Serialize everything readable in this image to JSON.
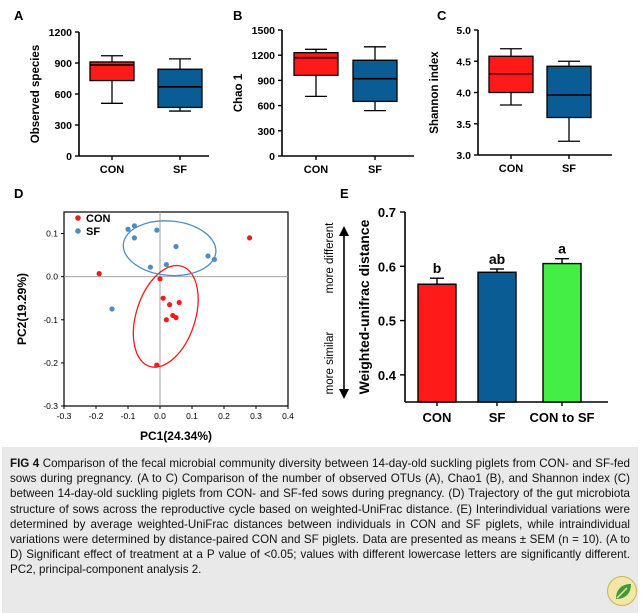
{
  "chart_data": [
    {
      "panel": "A",
      "type": "box",
      "ylabel": "Observed species",
      "ylim": [
        0,
        1200
      ],
      "yticks": [
        0,
        300,
        600,
        900,
        1200
      ],
      "categories": [
        "CON",
        "SF"
      ],
      "boxes": [
        {
          "min": 510,
          "q1": 730,
          "median": 880,
          "q3": 910,
          "max": 970,
          "color": "#ff1a1a"
        },
        {
          "min": 435,
          "q1": 470,
          "median": 670,
          "q3": 840,
          "max": 940,
          "color": "#0a5d94"
        }
      ]
    },
    {
      "panel": "B",
      "type": "box",
      "ylabel": "Chao 1",
      "ylim": [
        0,
        1500
      ],
      "yticks": [
        0,
        300,
        600,
        900,
        1200,
        1500
      ],
      "categories": [
        "CON",
        "SF"
      ],
      "boxes": [
        {
          "min": 710,
          "q1": 960,
          "median": 1170,
          "q3": 1230,
          "max": 1270,
          "color": "#ff1a1a"
        },
        {
          "min": 540,
          "q1": 650,
          "median": 920,
          "q3": 1140,
          "max": 1300,
          "color": "#0a5d94"
        }
      ]
    },
    {
      "panel": "C",
      "type": "box",
      "ylabel": "Shannon index",
      "ylim": [
        3.0,
        5.0
      ],
      "yticks": [
        "3.0",
        "3.5",
        "4.0",
        "4.5",
        "5.0"
      ],
      "categories": [
        "CON",
        "SF"
      ],
      "boxes": [
        {
          "min": 3.8,
          "q1": 4.0,
          "median": 4.3,
          "q3": 4.58,
          "max": 4.7,
          "color": "#ff1a1a"
        },
        {
          "min": 3.22,
          "q1": 3.6,
          "median": 3.96,
          "q3": 4.42,
          "max": 4.5,
          "color": "#0a5d94"
        }
      ]
    },
    {
      "panel": "D",
      "type": "scatter",
      "xlabel": "PC1(24.34%)",
      "ylabel": "PC2(19.29%)",
      "xlim": [
        -0.3,
        0.4
      ],
      "ylim": [
        -0.3,
        0.15
      ],
      "xticks": [
        "-0.3",
        "-0.2",
        "-0.1",
        "0.0",
        "0.1",
        "0.2",
        "0.3",
        "0.4"
      ],
      "yticks": [
        "0.1",
        "0.0",
        "-0.1",
        "-0.2",
        "-0.3"
      ],
      "legend": [
        "CON",
        "SF"
      ],
      "series": [
        {
          "name": "CON",
          "color": "#ee1c1c",
          "points": [
            [
              0.28,
              0.09
            ],
            [
              -0.19,
              0.007
            ],
            [
              0.0,
              -0.005
            ],
            [
              0.01,
              -0.05
            ],
            [
              0.03,
              -0.065
            ],
            [
              0.06,
              -0.06
            ],
            [
              0.05,
              -0.095
            ],
            [
              0.02,
              -0.1
            ],
            [
              0.04,
              -0.09
            ],
            [
              -0.01,
              -0.205
            ]
          ]
        },
        {
          "name": "SF",
          "color": "#4a8ec7",
          "points": [
            [
              -0.08,
              0.118
            ],
            [
              -0.1,
              0.11
            ],
            [
              -0.08,
              0.09
            ],
            [
              -0.01,
              0.108
            ],
            [
              0.05,
              0.07
            ],
            [
              0.02,
              0.028
            ],
            [
              -0.03,
              0.022
            ],
            [
              0.15,
              0.048
            ],
            [
              0.17,
              0.04
            ],
            [
              -0.15,
              -0.075
            ]
          ]
        }
      ],
      "ellipses": [
        {
          "series": "CON",
          "cx": 0.018,
          "cy": -0.092,
          "rx": 0.092,
          "ry": 0.122,
          "rotate": 18
        },
        {
          "series": "SF",
          "cx": 0.03,
          "cy": 0.066,
          "rx": 0.145,
          "ry": 0.063,
          "rotate": 5
        }
      ]
    },
    {
      "panel": "E",
      "type": "bar",
      "ylabel": "Weighted-unifrac distance",
      "ylim": [
        0.35,
        0.7
      ],
      "yticks": [
        "0.4",
        "0.5",
        "0.6",
        "0.7"
      ],
      "categories": [
        "CON",
        "SF",
        "CON to SF"
      ],
      "values": [
        0.567,
        0.589,
        0.605
      ],
      "sem": [
        0.011,
        0.006,
        0.009
      ],
      "letters": [
        "b",
        "ab",
        "a"
      ],
      "colors": [
        "#ff1a1a",
        "#0a5d94",
        "#44ee44"
      ],
      "side_labels": {
        "top": "more different",
        "bottom": "more similar"
      }
    }
  ],
  "caption": {
    "figure_label": "FIG 4",
    "text": "Comparison of the fecal microbial community diversity between 14-day-old suckling piglets from CON- and SF-fed sows during pregnancy. (A to C) Comparison of the number of observed OTUs (A), Chao1 (B), and Shannon index (C) between 14-day-old suckling piglets from CON- and SF-fed sows during pregnancy. (D) Trajectory of the gut microbiota structure of sows across the reproductive cycle based on weighted-UniFrac distance. (E) Interindividual variations were determined by average weighted-UniFrac distances between individuals in CON and SF piglets, while intraindividual variations were determined by distance-paired CON and SF piglets. Data are presented as means ± SEM (n = 10). (A to D) Significant effect of treatment at a P value of <0.05; values with different lowercase letters are significantly different. PC2, principal-component analysis 2."
  },
  "icons": {
    "journal_badge": "leaf-badge-icon"
  }
}
